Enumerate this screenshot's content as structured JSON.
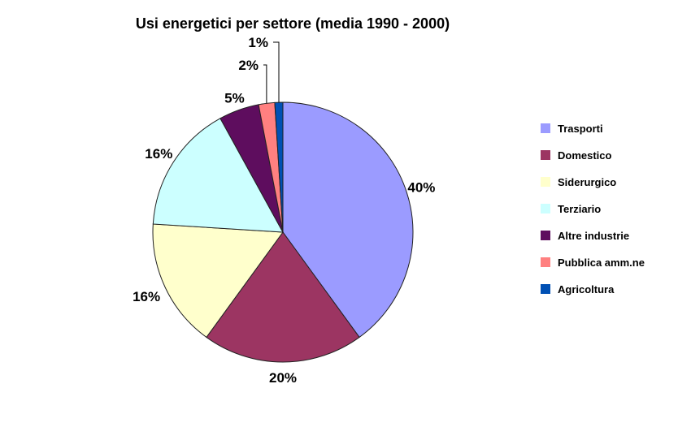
{
  "chart_data": {
    "type": "pie",
    "title": "Usi energetici per settore (media 1990 - 2000)",
    "legend_position": "right",
    "slices": [
      {
        "name": "Trasporti",
        "value": 40,
        "label": "40%",
        "color": "#9b9bff"
      },
      {
        "name": "Domestico",
        "value": 20,
        "label": "20%",
        "color": "#9c3562"
      },
      {
        "name": "Siderurgico",
        "value": 16,
        "label": "16%",
        "color": "#ffffcc"
      },
      {
        "name": "Terziario",
        "value": 16,
        "label": "16%",
        "color": "#ccffff"
      },
      {
        "name": "Altre industrie",
        "value": 5,
        "label": "5%",
        "color": "#5e0d5e"
      },
      {
        "name": "Pubblica amm.ne",
        "value": 2,
        "label": "2%",
        "color": "#ff8080"
      },
      {
        "name": "Agricoltura",
        "value": 1,
        "label": "1%",
        "color": "#0050b4"
      }
    ]
  }
}
